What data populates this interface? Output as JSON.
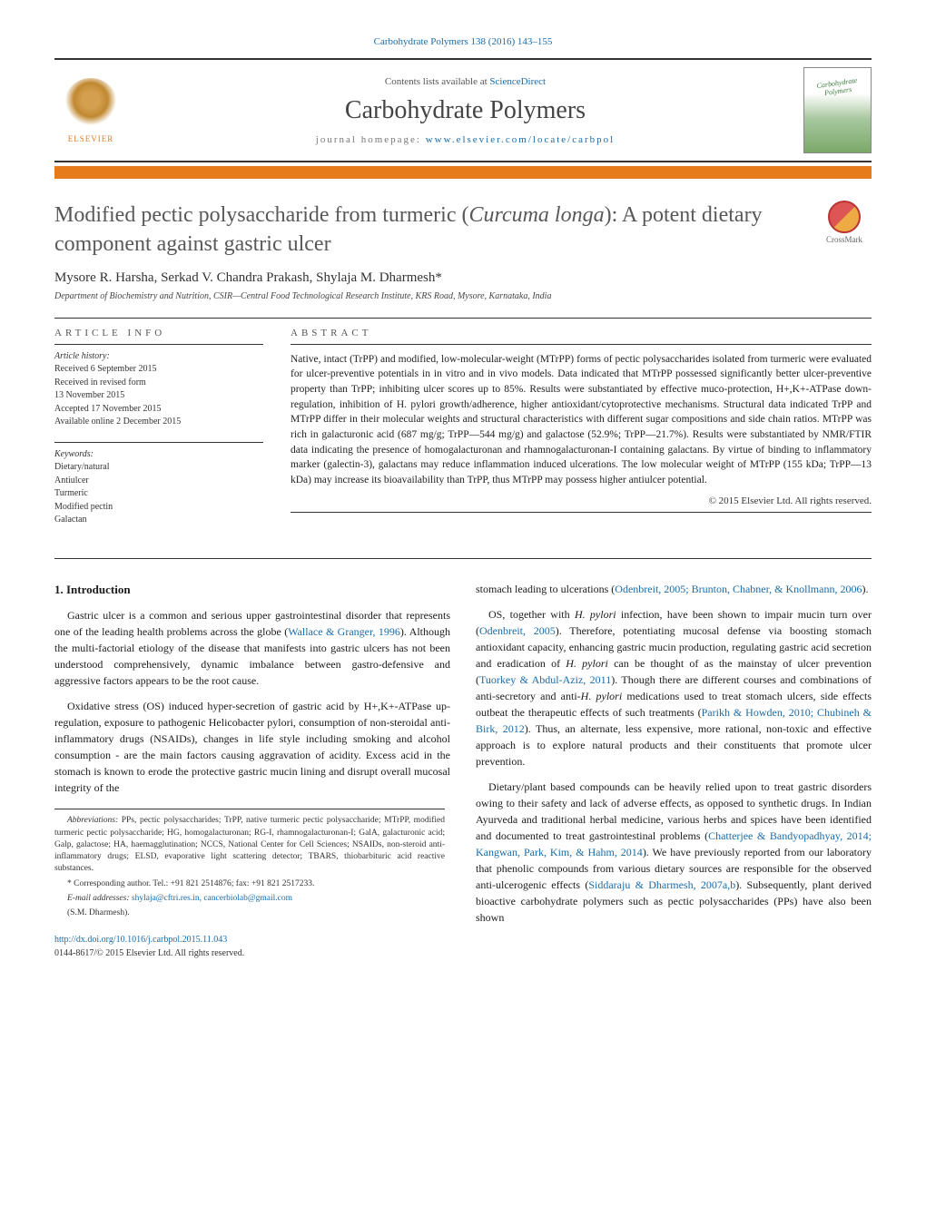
{
  "header": {
    "citation": "Carbohydrate Polymers 138 (2016) 143–155",
    "contents_prefix": "Contents lists available at ",
    "contents_link": "ScienceDirect",
    "journal_title": "Carbohydrate Polymers",
    "homepage_prefix": "journal homepage: ",
    "homepage_link": "www.elsevier.com/locate/carbpol",
    "elsevier_label": "ELSEVIER",
    "cover_label": "Carbohydrate Polymers"
  },
  "article": {
    "title_line1": "Modified pectic polysaccharide from turmeric (",
    "title_ital": "Curcuma longa",
    "title_line2": "): A potent dietary component against gastric ulcer",
    "crossmark": "CrossMark",
    "authors": "Mysore R. Harsha, Serkad V. Chandra Prakash, Shylaja M. Dharmesh*",
    "affiliation": "Department of Biochemistry and Nutrition, CSIR—Central Food Technological Research Institute, KRS Road, Mysore, Karnataka, India"
  },
  "info": {
    "label": "article info",
    "history_hdr": "Article history:",
    "received": "Received 6 September 2015",
    "revised1": "Received in revised form",
    "revised2": "13 November 2015",
    "accepted": "Accepted 17 November 2015",
    "online": "Available online 2 December 2015",
    "keywords_hdr": "Keywords:",
    "kw1": "Dietary/natural",
    "kw2": "Antiulcer",
    "kw3": "Turmeric",
    "kw4": "Modified pectin",
    "kw5": "Galactan"
  },
  "abstract": {
    "label": "abstract",
    "text": "Native, intact (TrPP) and modified, low-molecular-weight (MTrPP) forms of pectic polysaccharides isolated from turmeric were evaluated for ulcer-preventive potentials in in vitro and in vivo models. Data indicated that MTrPP possessed significantly better ulcer-preventive property than TrPP; inhibiting ulcer scores up to 85%. Results were substantiated by effective muco-protection, H+,K+-ATPase down-regulation, inhibition of H. pylori growth/adherence, higher antioxidant/cytoprotective mechanisms. Structural data indicated TrPP and MTrPP differ in their molecular weights and structural characteristics with different sugar compositions and side chain ratios. MTrPP was rich in galacturonic acid (687 mg/g; TrPP—544 mg/g) and galactose (52.9%; TrPP—21.7%). Results were substantiated by NMR/FTIR data indicating the presence of homogalacturonan and rhamnogalacturonan-I containing galactans. By virtue of binding to inflammatory marker (galectin-3), galactans may reduce inflammation induced ulcerations. The low molecular weight of MTrPP (155 kDa; TrPP—13 kDa) may increase its bioavailability than TrPP, thus MTrPP may possess higher antiulcer potential.",
    "copyright": "© 2015 Elsevier Ltd. All rights reserved."
  },
  "body": {
    "heading": "1. Introduction",
    "p1a": "Gastric ulcer is a common and serious upper gastrointestinal disorder that represents one of the leading health problems across the globe (",
    "p1ref": "Wallace & Granger, 1996",
    "p1b": "). Although the multi-factorial etiology of the disease that manifests into gastric ulcers has not been understood comprehensively, dynamic imbalance between gastro-defensive and aggressive factors appears to be the root cause.",
    "p2": "Oxidative stress (OS) induced hyper-secretion of gastric acid by H+,K+-ATPase up-regulation, exposure to pathogenic Helicobacter pylori, consumption of non-steroidal anti-inflammatory drugs (NSAIDs), changes in life style including smoking and alcohol consumption - are the main factors causing aggravation of acidity. Excess acid in the stomach is known to erode the protective gastric mucin lining and disrupt overall mucosal integrity of the",
    "p3a": "stomach leading to ulcerations (",
    "p3ref": "Odenbreit, 2005; Brunton, Chabner, & Knollmann, 2006",
    "p3b": ").",
    "p4a": "OS, together with ",
    "p4ital1": "H. pylori",
    "p4b": " infection, have been shown to impair mucin turn over (",
    "p4ref1": "Odenbreit, 2005",
    "p4c": "). Therefore, potentiating mucosal defense via boosting stomach antioxidant capacity, enhancing gastric mucin production, regulating gastric acid secretion and eradication of ",
    "p4ital2": "H. pylori",
    "p4d": " can be thought of as the mainstay of ulcer prevention (",
    "p4ref2": "Tuorkey & Abdul-Aziz, 2011",
    "p4e": "). Though there are different courses and combinations of anti-secretory and anti-",
    "p4ital3": "H. pylori",
    "p4f": " medications used to treat stomach ulcers, side effects outbeat the therapeutic effects of such treatments (",
    "p4ref3": "Parikh & Howden, 2010; Chubineh & Birk, 2012",
    "p4g": "). Thus, an alternate, less expensive, more rational, non-toxic and effective approach is to explore natural products and their constituents that promote ulcer prevention.",
    "p5a": "Dietary/plant based compounds can be heavily relied upon to treat gastric disorders owing to their safety and lack of adverse effects, as opposed to synthetic drugs. In Indian Ayurveda and traditional herbal medicine, various herbs and spices have been identified and documented to treat gastrointestinal problems (",
    "p5ref1": "Chatterjee & Bandyopadhyay, 2014; Kangwan, Park, Kim, & Hahm, 2014",
    "p5b": "). We have previously reported from our laboratory that phenolic compounds from various dietary sources are responsible for the observed anti-ulcerogenic effects (",
    "p5ref2": "Siddaraju & Dharmesh, 2007a,b",
    "p5c": "). Subsequently, plant derived bioactive carbohydrate polymers such as pectic polysaccharides (PPs) have also been shown"
  },
  "footnotes": {
    "abbrev_hdr": "Abbreviations:",
    "abbrev": " PPs, pectic polysaccharides; TrPP, native turmeric pectic polysaccharide; MTrPP, modified turmeric pectic polysaccharide; HG, homogalacturonan; RG-I, rhamnogalacturonan-I; GalA, galacturonic acid; Galp, galactose; HA, haemagglutination; NCCS, National Center for Cell Sciences; NSAIDs, non-steroid anti-inflammatory drugs; ELSD, evaporative light scattering detector; TBARS, thiobarbituric acid reactive substances.",
    "corr": "* Corresponding author. Tel.: +91 821 2514876; fax: +91 821 2517233.",
    "email_hdr": "E-mail addresses:",
    "emails": " shylaja@cftri.res.in, cancerbiolab@gmail.com",
    "email_name": "(S.M. Dharmesh).",
    "doi_link": "http://dx.doi.org/10.1016/j.carbpol.2015.11.043",
    "issn": "0144-8617/© 2015 Elsevier Ltd. All rights reserved."
  },
  "colors": {
    "link": "#1a6ba8",
    "accent": "#e67b1c",
    "text": "#1a1a1a",
    "rule": "#333333"
  }
}
